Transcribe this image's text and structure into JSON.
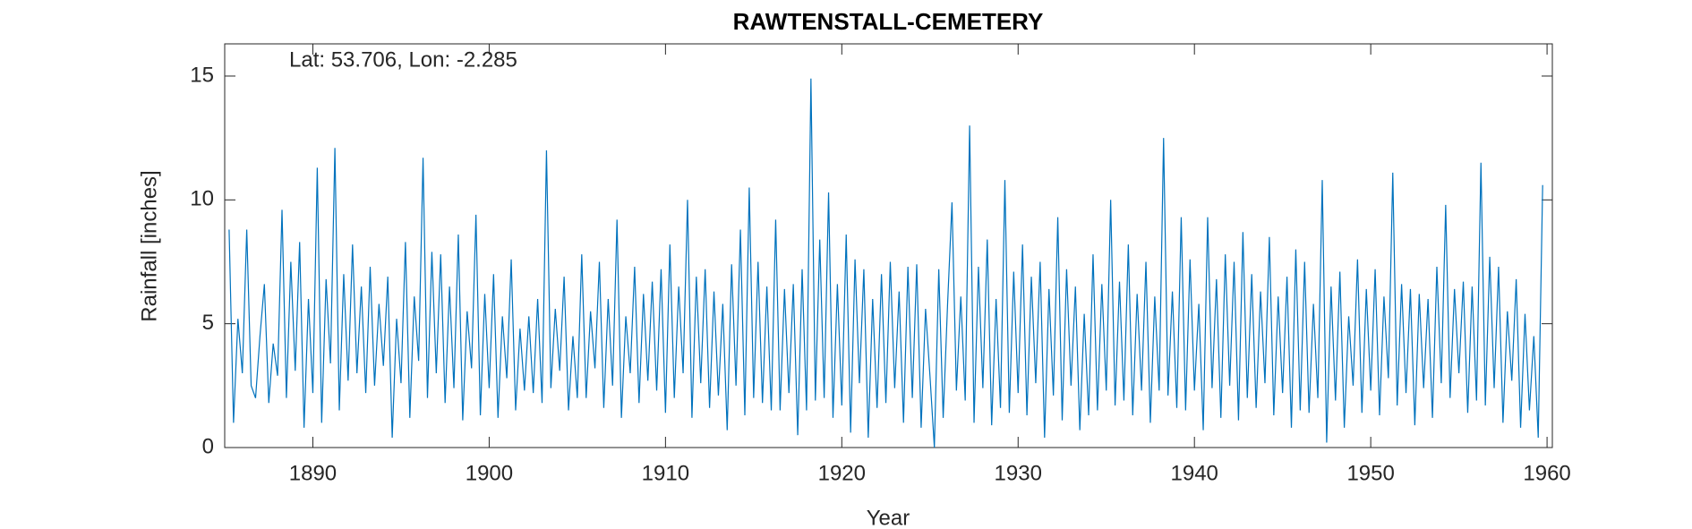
{
  "chart_data": {
    "type": "line",
    "title": "RAWTENSTALL-CEMETERY",
    "annotation": "Lat: 53.706, Lon: -2.285",
    "xlabel": "Year",
    "ylabel": "Rainfall [inches]",
    "color": "#0072bd",
    "xlim": [
      1885,
      1960.3
    ],
    "ylim": [
      0,
      16.3
    ],
    "xticks": [
      1890,
      1900,
      1910,
      1920,
      1930,
      1940,
      1950,
      1960
    ],
    "yticks": [
      0,
      5,
      10,
      15
    ],
    "x": [
      1885.25,
      1885.5,
      1885.75,
      1886,
      1886.25,
      1886.5,
      1886.75,
      1887,
      1887.25,
      1887.5,
      1887.75,
      1888,
      1888.25,
      1888.5,
      1888.75,
      1889,
      1889.25,
      1889.5,
      1889.75,
      1890,
      1890.25,
      1890.5,
      1890.75,
      1891,
      1891.25,
      1891.5,
      1891.75,
      1892,
      1892.25,
      1892.5,
      1892.75,
      1893,
      1893.25,
      1893.5,
      1893.75,
      1894,
      1894.25,
      1894.5,
      1894.75,
      1895,
      1895.25,
      1895.5,
      1895.75,
      1896,
      1896.25,
      1896.5,
      1896.75,
      1897,
      1897.25,
      1897.5,
      1897.75,
      1898,
      1898.25,
      1898.5,
      1898.75,
      1899,
      1899.25,
      1899.5,
      1899.75,
      1900,
      1900.25,
      1900.5,
      1900.75,
      1901,
      1901.25,
      1901.5,
      1901.75,
      1902,
      1902.25,
      1902.5,
      1902.75,
      1903,
      1903.25,
      1903.5,
      1903.75,
      1904,
      1904.25,
      1904.5,
      1904.75,
      1905,
      1905.25,
      1905.5,
      1905.75,
      1906,
      1906.25,
      1906.5,
      1906.75,
      1907,
      1907.25,
      1907.5,
      1907.75,
      1908,
      1908.25,
      1908.5,
      1908.75,
      1909,
      1909.25,
      1909.5,
      1909.75,
      1910,
      1910.25,
      1910.5,
      1910.75,
      1911,
      1911.25,
      1911.5,
      1911.75,
      1912,
      1912.25,
      1912.5,
      1912.75,
      1913,
      1913.25,
      1913.5,
      1913.75,
      1914,
      1914.25,
      1914.5,
      1914.75,
      1915,
      1915.25,
      1915.5,
      1915.75,
      1916,
      1916.25,
      1916.5,
      1916.75,
      1917,
      1917.25,
      1917.5,
      1917.75,
      1918,
      1918.25,
      1918.5,
      1918.75,
      1919,
      1919.25,
      1919.5,
      1919.75,
      1920,
      1920.25,
      1920.5,
      1920.75,
      1921,
      1921.25,
      1921.5,
      1921.75,
      1922,
      1922.25,
      1922.5,
      1922.75,
      1923,
      1923.25,
      1923.5,
      1923.75,
      1924,
      1924.25,
      1924.5,
      1924.75,
      1925,
      1925.25,
      1925.5,
      1925.75,
      1926,
      1926.25,
      1926.5,
      1926.75,
      1927,
      1927.25,
      1927.5,
      1927.75,
      1928,
      1928.25,
      1928.5,
      1928.75,
      1929,
      1929.25,
      1929.5,
      1929.75,
      1930,
      1930.25,
      1930.5,
      1930.75,
      1931,
      1931.25,
      1931.5,
      1931.75,
      1932,
      1932.25,
      1932.5,
      1932.75,
      1933,
      1933.25,
      1933.5,
      1933.75,
      1934,
      1934.25,
      1934.5,
      1934.75,
      1935,
      1935.25,
      1935.5,
      1935.75,
      1936,
      1936.25,
      1936.5,
      1936.75,
      1937,
      1937.25,
      1937.5,
      1937.75,
      1938,
      1938.25,
      1938.5,
      1938.75,
      1939,
      1939.25,
      1939.5,
      1939.75,
      1940,
      1940.25,
      1940.5,
      1940.75,
      1941,
      1941.25,
      1941.5,
      1941.75,
      1942,
      1942.25,
      1942.5,
      1942.75,
      1943,
      1943.25,
      1943.5,
      1943.75,
      1944,
      1944.25,
      1944.5,
      1944.75,
      1945,
      1945.25,
      1945.5,
      1945.75,
      1946,
      1946.25,
      1946.5,
      1946.75,
      1947,
      1947.25,
      1947.5,
      1947.75,
      1948,
      1948.25,
      1948.5,
      1948.75,
      1949,
      1949.25,
      1949.5,
      1949.75,
      1950,
      1950.25,
      1950.5,
      1950.75,
      1951,
      1951.25,
      1951.5,
      1951.75,
      1952,
      1952.25,
      1952.5,
      1952.75,
      1953,
      1953.25,
      1953.5,
      1953.75,
      1954,
      1954.25,
      1954.5,
      1954.75,
      1955,
      1955.25,
      1955.5,
      1955.75,
      1956,
      1956.25,
      1956.5,
      1956.75,
      1957,
      1957.25,
      1957.5,
      1957.75,
      1958,
      1958.25,
      1958.5,
      1958.75,
      1959,
      1959.25,
      1959.5,
      1959.75
    ],
    "values": [
      8.8,
      1.0,
      5.2,
      3.0,
      8.8,
      2.5,
      2.0,
      4.5,
      6.6,
      1.8,
      4.2,
      2.9,
      9.6,
      2.0,
      7.5,
      3.1,
      8.3,
      0.8,
      6.0,
      2.2,
      11.3,
      1.0,
      6.8,
      3.4,
      12.1,
      1.5,
      7.0,
      2.7,
      8.2,
      3.0,
      6.5,
      2.2,
      7.3,
      2.5,
      5.8,
      3.3,
      6.9,
      0.4,
      5.2,
      2.6,
      8.3,
      1.2,
      6.1,
      3.5,
      11.7,
      2.0,
      7.9,
      3.0,
      7.8,
      1.8,
      6.5,
      2.4,
      8.6,
      1.1,
      5.5,
      3.2,
      9.4,
      1.3,
      6.2,
      2.4,
      7.0,
      1.2,
      5.3,
      2.8,
      7.6,
      1.5,
      4.8,
      2.3,
      5.3,
      2.2,
      6.0,
      1.8,
      12.0,
      2.4,
      5.6,
      3.1,
      6.9,
      1.5,
      4.5,
      2.0,
      7.8,
      2.0,
      5.5,
      3.2,
      7.5,
      1.6,
      6.0,
      2.5,
      9.2,
      1.2,
      5.3,
      3.0,
      7.3,
      1.8,
      6.2,
      2.7,
      6.7,
      2.3,
      7.2,
      1.4,
      8.2,
      2.0,
      6.5,
      3.0,
      10.0,
      1.2,
      6.9,
      2.6,
      7.2,
      1.6,
      6.3,
      2.1,
      5.8,
      0.7,
      7.4,
      2.5,
      8.8,
      1.3,
      10.5,
      2.0,
      7.5,
      1.8,
      6.5,
      1.5,
      9.2,
      1.5,
      6.4,
      2.2,
      6.6,
      0.5,
      7.2,
      1.5,
      14.9,
      1.9,
      8.4,
      2.0,
      10.3,
      1.2,
      6.6,
      1.7,
      8.6,
      0.6,
      7.6,
      2.6,
      7.2,
      0.4,
      6.0,
      1.6,
      7.0,
      1.8,
      7.5,
      2.4,
      6.3,
      1.0,
      7.3,
      2.0,
      7.4,
      0.8,
      5.6,
      2.9,
      0.0,
      7.2,
      1.2,
      5.8,
      9.9,
      2.3,
      6.1,
      1.9,
      13.0,
      1.0,
      7.3,
      2.4,
      8.4,
      0.9,
      6.0,
      1.6,
      10.8,
      1.4,
      7.1,
      2.2,
      8.2,
      1.3,
      6.9,
      2.6,
      7.5,
      0.4,
      6.4,
      2.1,
      9.3,
      1.1,
      7.2,
      2.5,
      6.5,
      0.7,
      5.4,
      1.3,
      7.8,
      1.5,
      6.6,
      2.3,
      10.0,
      1.7,
      6.7,
      1.9,
      8.2,
      1.3,
      6.2,
      2.3,
      7.5,
      1.0,
      6.1,
      2.3,
      12.5,
      2.1,
      6.3,
      1.6,
      9.3,
      1.5,
      7.6,
      2.3,
      5.8,
      0.7,
      9.3,
      2.4,
      6.8,
      1.2,
      7.8,
      2.5,
      7.5,
      1.1,
      8.7,
      2.0,
      7.0,
      1.6,
      6.3,
      2.6,
      8.5,
      1.3,
      6.1,
      2.2,
      6.9,
      0.8,
      8.0,
      1.5,
      7.5,
      1.4,
      5.8,
      2.0,
      10.8,
      0.2,
      6.5,
      1.9,
      7.1,
      0.8,
      5.3,
      2.5,
      7.6,
      1.4,
      6.4,
      2.3,
      7.2,
      1.3,
      6.1,
      2.8,
      11.1,
      1.7,
      6.6,
      2.2,
      6.4,
      0.9,
      6.2,
      2.4,
      6.0,
      1.2,
      7.3,
      2.6,
      9.8,
      2.0,
      6.4,
      3.0,
      6.7,
      1.4,
      6.5,
      1.9,
      11.5,
      1.7,
      7.7,
      2.4,
      7.3,
      1.0,
      5.5,
      2.7,
      6.8,
      0.8,
      5.4,
      1.5,
      4.5,
      0.4,
      10.6
    ]
  }
}
